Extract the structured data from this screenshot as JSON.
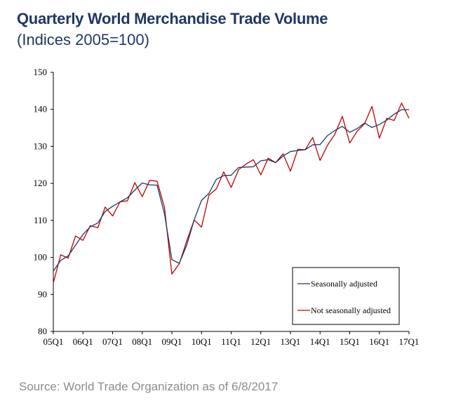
{
  "header": {
    "title": "Quarterly World Merchandise Trade Volume",
    "subtitle": "(Indices 2005=100)"
  },
  "footer": {
    "source": "Source: World Trade Organization as of 6/8/2017"
  },
  "colors": {
    "title": "#1f3864",
    "seasonally_adjusted": "#1f3864",
    "not_seasonally_adjusted": "#c00000",
    "source": "#8c8c8c"
  },
  "chart_data": {
    "type": "line",
    "title": "Quarterly World Merchandise Trade Volume",
    "subtitle": "(Indices 2005=100)",
    "xlabel": "",
    "ylabel": "",
    "ylim": [
      80,
      150
    ],
    "yticks": [
      80,
      90,
      100,
      110,
      120,
      130,
      140,
      150
    ],
    "xtick_labels": [
      "05Q1",
      "06Q1",
      "07Q1",
      "08Q1",
      "09Q1",
      "10Q1",
      "11Q1",
      "12Q1",
      "13Q1",
      "14Q1",
      "15Q1",
      "16Q1",
      "17Q1"
    ],
    "grid": false,
    "legend_position": "bottom-right",
    "x": [
      "05Q1",
      "05Q2",
      "05Q3",
      "05Q4",
      "06Q1",
      "06Q2",
      "06Q3",
      "06Q4",
      "07Q1",
      "07Q2",
      "07Q3",
      "07Q4",
      "08Q1",
      "08Q2",
      "08Q3",
      "08Q4",
      "09Q1",
      "09Q2",
      "09Q3",
      "09Q4",
      "10Q1",
      "10Q2",
      "10Q3",
      "10Q4",
      "11Q1",
      "11Q2",
      "11Q3",
      "11Q4",
      "12Q1",
      "12Q2",
      "12Q3",
      "12Q4",
      "13Q1",
      "13Q2",
      "13Q3",
      "13Q4",
      "14Q1",
      "14Q2",
      "14Q3",
      "14Q4",
      "15Q1",
      "15Q2",
      "15Q3",
      "15Q4",
      "16Q1",
      "16Q2",
      "16Q3",
      "16Q4",
      "17Q1"
    ],
    "series": [
      {
        "name": "Seasonally adjusted",
        "color": "#1f3864",
        "values": [
          96.3,
          99.2,
          100.4,
          103.3,
          106.2,
          108.3,
          109.3,
          112.4,
          113.8,
          115.0,
          116.1,
          118.2,
          120.1,
          119.6,
          119.5,
          111.8,
          99.4,
          98.4,
          103.3,
          110.1,
          115.4,
          117.3,
          121.1,
          122.1,
          122.2,
          124.3,
          124.4,
          124.5,
          126.1,
          126.4,
          125.6,
          127.4,
          128.6,
          128.9,
          129.1,
          130.4,
          130.5,
          132.9,
          134.3,
          135.4,
          133.8,
          134.8,
          136.3,
          135.1,
          135.9,
          137.1,
          138.7,
          139.9,
          139.9
        ]
      },
      {
        "name": "Not seasonally adjusted",
        "color": "#c00000",
        "values": [
          93.1,
          100.7,
          99.8,
          105.8,
          104.6,
          108.6,
          108.0,
          113.6,
          111.2,
          115.0,
          115.3,
          120.2,
          116.4,
          120.8,
          120.6,
          113.5,
          95.5,
          98.3,
          104.4,
          110.1,
          108.2,
          116.8,
          118.5,
          123.1,
          118.9,
          123.7,
          125.2,
          126.4,
          122.3,
          126.8,
          125.6,
          128.0,
          123.3,
          129.2,
          129.1,
          132.4,
          126.2,
          130.3,
          133.3,
          138.1,
          130.9,
          134.1,
          136.1,
          140.8,
          132.2,
          137.6,
          137.0,
          141.7,
          137.6
        ]
      }
    ]
  }
}
